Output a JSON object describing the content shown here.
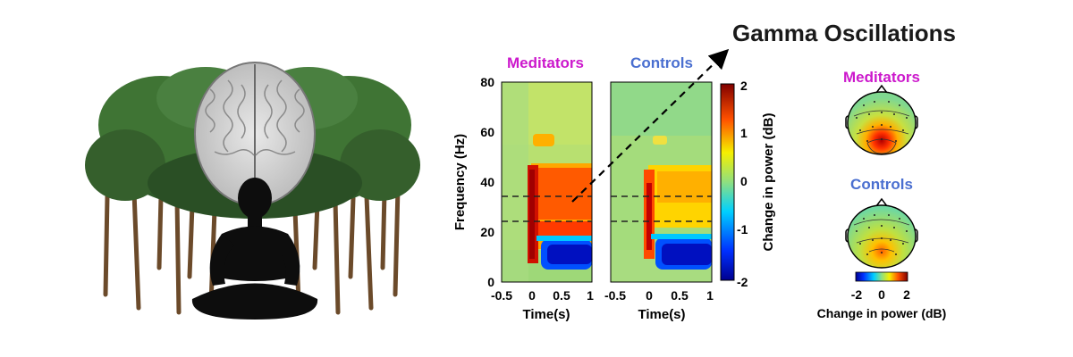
{
  "title": "Gamma Oscillations",
  "groups": {
    "meditators": "Meditators",
    "controls": "Controls"
  },
  "spectrogram": {
    "ylabel": "Frequency (Hz)",
    "xlabel": "Time(s)",
    "yticks": [
      "0",
      "20",
      "40",
      "60",
      "80"
    ],
    "xticks": [
      "-0.5",
      "0",
      "0.5",
      "1"
    ],
    "xticks_right": [
      "-0.5",
      "0",
      "0.5",
      "1"
    ],
    "colorbar_label": "Change in power (dB)",
    "colorbar_ticks": [
      "-2",
      "-1",
      "0",
      "1",
      "2"
    ],
    "gamma_band_hz": [
      24,
      34
    ]
  },
  "topomap": {
    "scale_ticks": [
      "-2",
      "0",
      "2"
    ],
    "scale_label": "Change in power (dB)"
  },
  "colors": {
    "meditators": "#cc18cc",
    "controls": "#4a6fd0",
    "title": "#1a1a1a"
  }
}
